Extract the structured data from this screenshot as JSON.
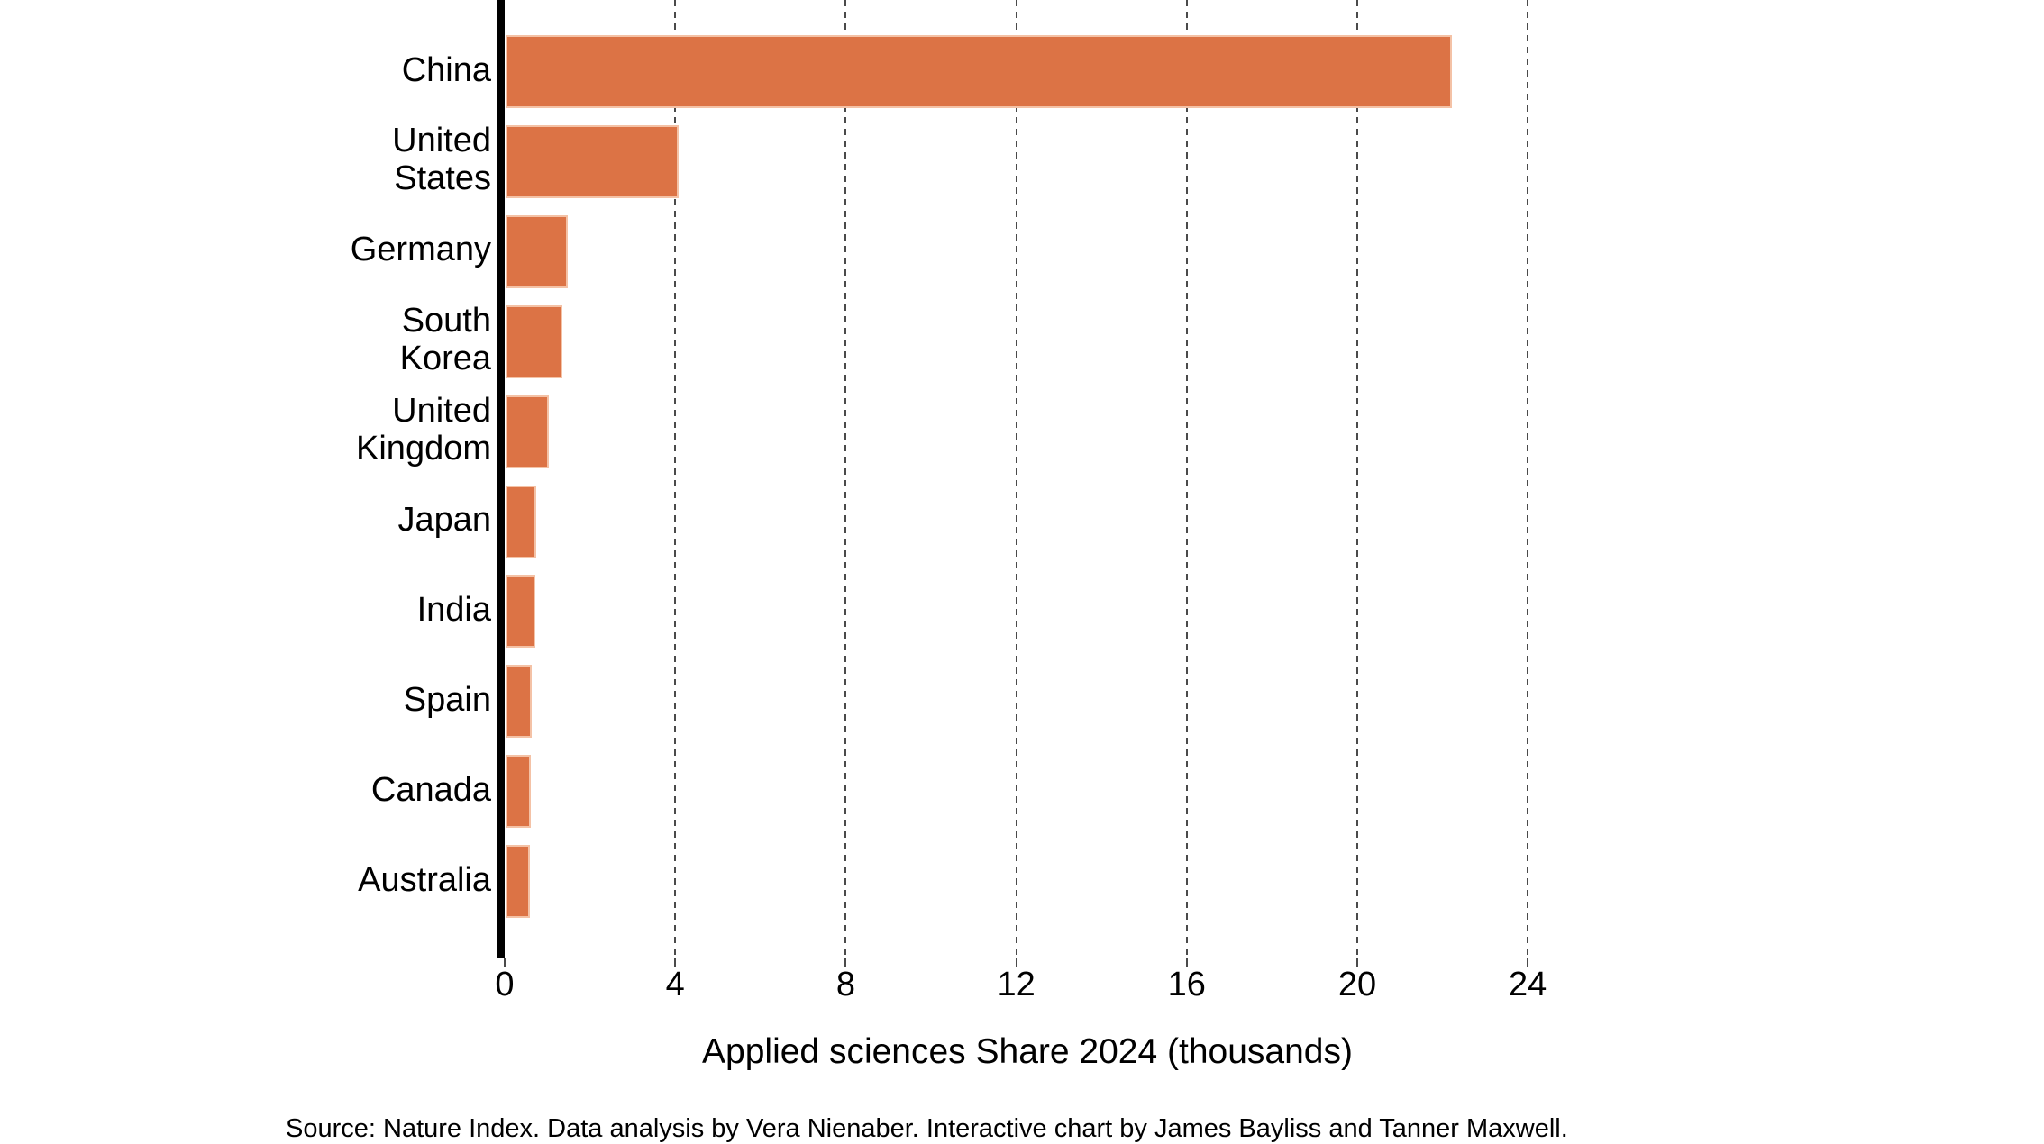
{
  "chart_data": {
    "type": "bar",
    "orientation": "horizontal",
    "title": "",
    "xlabel": "Applied sciences Share 2024 (thousands)",
    "ylabel": "",
    "categories": [
      "China",
      "United States",
      "Germany",
      "South Korea",
      "United Kingdom",
      "Japan",
      "India",
      "Spain",
      "Canada",
      "Australia"
    ],
    "label_lines": [
      [
        "China"
      ],
      [
        "United",
        "States"
      ],
      [
        "Germany"
      ],
      [
        "South",
        "Korea"
      ],
      [
        "United",
        "Kingdom"
      ],
      [
        "Japan"
      ],
      [
        "India"
      ],
      [
        "Spain"
      ],
      [
        "Canada"
      ],
      [
        "Australia"
      ]
    ],
    "values": [
      22.2,
      4.06,
      1.46,
      1.33,
      1.01,
      0.72,
      0.7,
      0.61,
      0.59,
      0.58
    ],
    "xlim": [
      0,
      24.5
    ],
    "xticks": [
      0,
      4,
      8,
      12,
      16,
      20,
      24
    ],
    "grid": "vertical-dashed",
    "legend": "none",
    "bar_color": "#dc7345",
    "bar_border_color": "#f4c2a6",
    "gridline_color": "#4a4a4a",
    "axis_color": "#000000",
    "caption": "Source: Nature Index. Data analysis by Vera Nienaber. Interactive chart by James Bayliss and Tanner Maxwell."
  }
}
